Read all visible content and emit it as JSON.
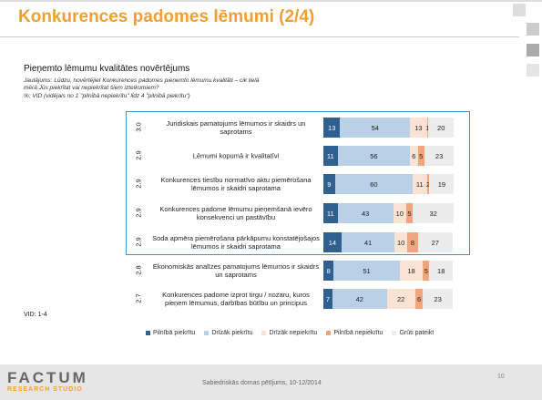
{
  "title": "Konkurences padomes lēmumi (2/4)",
  "footer": "Sabiedriskās domas pētījums, 10-12/2014",
  "page_number": "10",
  "logo": {
    "name": "FACTUM",
    "tagline": "RESEARCH STUDIO"
  },
  "chart_data": {
    "type": "stacked-bar-horizontal",
    "subtitle": "Pieņemto lēmumu kvalitātes novērtējums",
    "question": "Jautājums: Lūdzu, novērtējiet Konkurences padomes pieņemto lēmumu kvalitāti – cik lielā mērā Jūs piekrītat vai nepiekrītat šiem izteikumiem?",
    "note": "%; VID (vidējais no 1 \"pilnībā nepiekrītu\" līdz 4 \"pilnībā piekrītu\")",
    "vid_caption": "VID: 1-4",
    "categories": [
      "Juridiskais pamatojums lēmumos ir skaidrs un saprotams",
      "Lēmumi kopumā ir kvalitatīvi",
      "Konkurences tiesību normatīvo aktu piemērošana lēmumos ir skaidri saprotama",
      "Konkurences padome lēmumu pieņemšanā ievēro konsekvenci un pastāvību",
      "Soda apmēra piemērošana pārkāpumu konstatējošajos lēmumos ir skaidri saprotama",
      "Ekonomiskās analīzes pamatojums lēmumos ir skaidrs un saprotams",
      "Konkurences padome izprot tirgu / nozaru, kuros pieņem lēmumus, darbības būtību un principus"
    ],
    "vid": [
      "3.0",
      "2.9",
      "2.9",
      "2.9",
      "2.9",
      "2.8",
      "2.7"
    ],
    "xlim": [
      0,
      100
    ],
    "series": [
      {
        "name": "Pilnībā piekrītu",
        "color": "#2f6090",
        "values": [
          13,
          11,
          9,
          11,
          14,
          8,
          7
        ]
      },
      {
        "name": "Drīzāk piekrītu",
        "color": "#b9d0e7",
        "values": [
          54,
          56,
          60,
          43,
          41,
          51,
          42
        ]
      },
      {
        "name": "Drīzāk nepiekrītu",
        "color": "#fbe3d4",
        "values": [
          13,
          6,
          11,
          10,
          10,
          18,
          22
        ]
      },
      {
        "name": "Pilnībā nepiekrītu",
        "color": "#f2a47c",
        "values": [
          1,
          5,
          2,
          5,
          8,
          5,
          6
        ]
      },
      {
        "name": "Grūti pateikt",
        "color": "#ececec",
        "values": [
          20,
          23,
          19,
          32,
          27,
          18,
          23
        ]
      }
    ]
  }
}
